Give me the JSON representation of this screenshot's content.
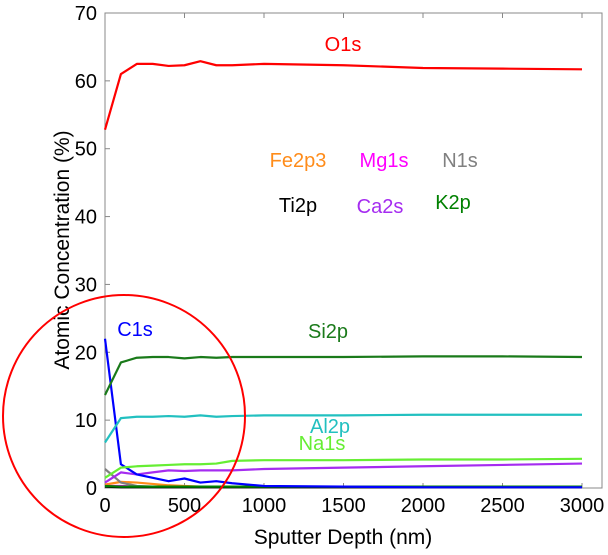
{
  "chart_data": {
    "type": "line",
    "xlabel": "Sputter Depth (nm)",
    "ylabel": "Atomic Concentration (%)",
    "xlim": [
      0,
      3000
    ],
    "ylim": [
      0,
      70
    ],
    "xticks": [
      "0",
      "500",
      "1000",
      "1500",
      "2000",
      "2500",
      "3000"
    ],
    "yticks": [
      "0",
      "10",
      "20",
      "30",
      "40",
      "50",
      "60",
      "70"
    ],
    "grid": false,
    "x": [
      0,
      100,
      200,
      300,
      400,
      500,
      600,
      700,
      800,
      1000,
      1500,
      2000,
      2500,
      3000
    ],
    "series": [
      {
        "name": "O1s",
        "color": "#ff0000",
        "values": [
          52.8,
          61,
          62.5,
          62.5,
          62.2,
          62.3,
          62.9,
          62.3,
          62.3,
          62.5,
          62.3,
          61.9,
          61.8,
          61.7
        ]
      },
      {
        "name": "Fe2p3",
        "color": "#ff8c1a",
        "values": [
          0.5,
          0.9,
          0.8,
          0.6,
          0.4,
          0.3,
          0.2,
          0.2,
          0.1,
          0.1,
          0.1,
          0.1,
          0.1,
          0.1
        ]
      },
      {
        "name": "Mg1s",
        "color": "#ff00ff",
        "values": [
          0.3,
          0.3,
          0.2,
          0.2,
          0.2,
          0.2,
          0.2,
          0.2,
          0.2,
          0.2,
          0.2,
          0.2,
          0.2,
          0.2
        ]
      },
      {
        "name": "N1s",
        "color": "#808080",
        "values": [
          2.8,
          0.8,
          0.3,
          0.2,
          0.1,
          0.1,
          0.1,
          0.1,
          0.1,
          0.1,
          0.1,
          0.1,
          0.1,
          0.1
        ]
      },
      {
        "name": "Ti2p",
        "color": "#000000",
        "values": [
          0.2,
          0.1,
          0.1,
          0.1,
          0.1,
          0.1,
          0.1,
          0.1,
          0.1,
          0.1,
          0.1,
          0.1,
          0.1,
          0.1
        ]
      },
      {
        "name": "Ca2s",
        "color": "#a52cf0",
        "values": [
          0.8,
          2.3,
          2.0,
          2.3,
          2.6,
          2.5,
          2.6,
          2.6,
          2.6,
          2.8,
          3.0,
          3.2,
          3.4,
          3.6
        ]
      },
      {
        "name": "K2p",
        "color": "#008000",
        "values": [
          0.3,
          0.2,
          0.2,
          0.2,
          0.2,
          0.2,
          0.2,
          0.2,
          0.2,
          0.2,
          0.2,
          0.2,
          0.2,
          0.2
        ]
      },
      {
        "name": "C1s",
        "color": "#0000ff",
        "values": [
          22,
          3.5,
          2.0,
          1.5,
          1.0,
          1.4,
          0.8,
          1.0,
          0.7,
          0.3,
          0.2,
          0.1,
          0.1,
          0.1
        ]
      },
      {
        "name": "Si2p",
        "color": "#1a7a1a",
        "values": [
          13.7,
          18.5,
          19.2,
          19.3,
          19.3,
          19.1,
          19.3,
          19.2,
          19.3,
          19.3,
          19.3,
          19.4,
          19.4,
          19.3
        ]
      },
      {
        "name": "Al2p",
        "color": "#22c0c0",
        "values": [
          6.7,
          10.3,
          10.5,
          10.5,
          10.6,
          10.5,
          10.7,
          10.5,
          10.6,
          10.7,
          10.7,
          10.8,
          10.8,
          10.8
        ]
      },
      {
        "name": "Na1s",
        "color": "#66ee33",
        "values": [
          1.5,
          3.0,
          3.2,
          3.3,
          3.4,
          3.5,
          3.5,
          3.6,
          4.0,
          4.1,
          4.1,
          4.2,
          4.2,
          4.3
        ]
      }
    ],
    "annotation": {
      "shape": "circle",
      "color": "#ff0000"
    }
  }
}
